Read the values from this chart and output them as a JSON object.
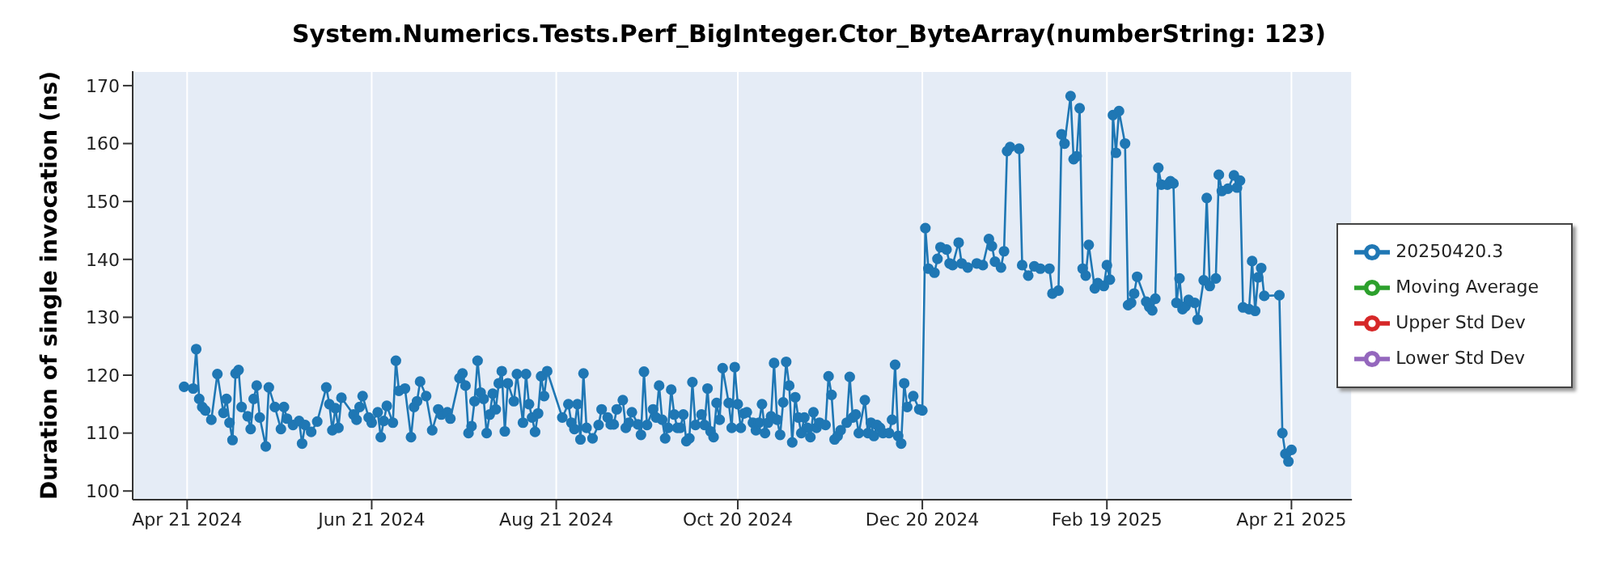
{
  "chart_data": {
    "type": "line",
    "title": "System.Numerics.Tests.Perf_BigInteger.Ctor_ByteArray(numberString: 123)",
    "ylabel": "Duration of single invocation (ns)",
    "x": [
      "2024-04-20",
      "2024-04-23",
      "2024-04-24",
      "2024-04-25",
      "2024-04-26",
      "2024-04-27",
      "2024-04-29",
      "2024-05-01",
      "2024-05-03",
      "2024-05-04",
      "2024-05-05",
      "2024-05-06",
      "2024-05-07",
      "2024-05-08",
      "2024-05-09",
      "2024-05-11",
      "2024-05-12",
      "2024-05-13",
      "2024-05-14",
      "2024-05-15",
      "2024-05-17",
      "2024-05-18",
      "2024-05-20",
      "2024-05-22",
      "2024-05-23",
      "2024-05-24",
      "2024-05-26",
      "2024-05-28",
      "2024-05-29",
      "2024-05-30",
      "2024-06-01",
      "2024-06-03",
      "2024-06-06",
      "2024-06-07",
      "2024-06-08",
      "2024-06-09",
      "2024-06-10",
      "2024-06-11",
      "2024-06-15",
      "2024-06-16",
      "2024-06-17",
      "2024-06-18",
      "2024-06-20",
      "2024-06-21",
      "2024-06-23",
      "2024-06-24",
      "2024-06-25",
      "2024-06-26",
      "2024-06-28",
      "2024-06-29",
      "2024-06-30",
      "2024-07-02",
      "2024-07-04",
      "2024-07-05",
      "2024-07-06",
      "2024-07-07",
      "2024-07-09",
      "2024-07-11",
      "2024-07-13",
      "2024-07-14",
      "2024-07-16",
      "2024-07-17",
      "2024-07-20",
      "2024-07-21",
      "2024-07-22",
      "2024-07-23",
      "2024-07-24",
      "2024-07-25",
      "2024-07-26",
      "2024-07-27",
      "2024-07-28",
      "2024-07-29",
      "2024-07-30",
      "2024-07-31",
      "2024-08-01",
      "2024-08-02",
      "2024-08-03",
      "2024-08-04",
      "2024-08-05",
      "2024-08-07",
      "2024-08-08",
      "2024-08-10",
      "2024-08-11",
      "2024-08-12",
      "2024-08-13",
      "2024-08-14",
      "2024-08-15",
      "2024-08-16",
      "2024-08-17",
      "2024-08-18",
      "2024-08-23",
      "2024-08-25",
      "2024-08-26",
      "2024-08-27",
      "2024-08-28",
      "2024-08-29",
      "2024-08-30",
      "2024-08-31",
      "2024-09-02",
      "2024-09-04",
      "2024-09-05",
      "2024-09-07",
      "2024-09-08",
      "2024-09-09",
      "2024-09-10",
      "2024-09-12",
      "2024-09-13",
      "2024-09-14",
      "2024-09-15",
      "2024-09-17",
      "2024-09-18",
      "2024-09-19",
      "2024-09-20",
      "2024-09-22",
      "2024-09-23",
      "2024-09-24",
      "2024-09-25",
      "2024-09-26",
      "2024-09-27",
      "2024-09-28",
      "2024-09-29",
      "2024-09-30",
      "2024-10-01",
      "2024-10-02",
      "2024-10-03",
      "2024-10-04",
      "2024-10-05",
      "2024-10-06",
      "2024-10-08",
      "2024-10-09",
      "2024-10-10",
      "2024-10-11",
      "2024-10-12",
      "2024-10-13",
      "2024-10-14",
      "2024-10-15",
      "2024-10-17",
      "2024-10-18",
      "2024-10-19",
      "2024-10-20",
      "2024-10-21",
      "2024-10-22",
      "2024-10-23",
      "2024-10-25",
      "2024-10-26",
      "2024-10-27",
      "2024-10-28",
      "2024-10-29",
      "2024-10-30",
      "2024-10-31",
      "2024-11-01",
      "2024-11-02",
      "2024-11-03",
      "2024-11-04",
      "2024-11-05",
      "2024-11-06",
      "2024-11-07",
      "2024-11-08",
      "2024-11-09",
      "2024-11-10",
      "2024-11-11",
      "2024-11-12",
      "2024-11-13",
      "2024-11-14",
      "2024-11-15",
      "2024-11-16",
      "2024-11-18",
      "2024-11-19",
      "2024-11-20",
      "2024-11-21",
      "2024-11-22",
      "2024-11-23",
      "2024-11-25",
      "2024-11-26",
      "2024-11-27",
      "2024-11-28",
      "2024-11-29",
      "2024-12-01",
      "2024-12-02",
      "2024-12-03",
      "2024-12-04",
      "2024-12-05",
      "2024-12-06",
      "2024-12-07",
      "2024-12-09",
      "2024-12-10",
      "2024-12-11",
      "2024-12-12",
      "2024-12-13",
      "2024-12-14",
      "2024-12-15",
      "2024-12-17",
      "2024-12-19",
      "2024-12-20",
      "2024-12-21",
      "2024-12-22",
      "2024-12-24",
      "2024-12-25",
      "2024-12-26",
      "2024-12-28",
      "2024-12-29",
      "2024-12-30",
      "2025-01-01",
      "2025-01-02",
      "2025-01-04",
      "2025-01-07",
      "2025-01-09",
      "2025-01-11",
      "2025-01-12",
      "2025-01-13",
      "2025-01-15",
      "2025-01-16",
      "2025-01-17",
      "2025-01-18",
      "2025-01-21",
      "2025-01-22",
      "2025-01-24",
      "2025-01-26",
      "2025-01-28",
      "2025-01-31",
      "2025-02-01",
      "2025-02-03",
      "2025-02-04",
      "2025-02-05",
      "2025-02-07",
      "2025-02-08",
      "2025-02-09",
      "2025-02-10",
      "2025-02-11",
      "2025-02-12",
      "2025-02-13",
      "2025-02-15",
      "2025-02-16",
      "2025-02-18",
      "2025-02-19",
      "2025-02-20",
      "2025-02-21",
      "2025-02-22",
      "2025-02-23",
      "2025-02-25",
      "2025-02-26",
      "2025-02-27",
      "2025-02-28",
      "2025-03-01",
      "2025-03-04",
      "2025-03-05",
      "2025-03-06",
      "2025-03-07",
      "2025-03-08",
      "2025-03-09",
      "2025-03-11",
      "2025-03-12",
      "2025-03-13",
      "2025-03-14",
      "2025-03-15",
      "2025-03-16",
      "2025-03-17",
      "2025-03-18",
      "2025-03-20",
      "2025-03-21",
      "2025-03-23",
      "2025-03-24",
      "2025-03-25",
      "2025-03-27",
      "2025-03-28",
      "2025-03-29",
      "2025-03-31",
      "2025-04-02",
      "2025-04-03",
      "2025-04-04",
      "2025-04-05",
      "2025-04-07",
      "2025-04-08",
      "2025-04-09",
      "2025-04-10",
      "2025-04-11",
      "2025-04-12",
      "2025-04-17",
      "2025-04-18",
      "2025-04-19",
      "2025-04-20",
      "2025-04-21"
    ],
    "series": [
      {
        "name": "20250420.3",
        "color": "#1f77b4",
        "values": [
          118.0,
          117.7,
          124.5,
          115.9,
          114.5,
          113.9,
          112.3,
          120.2,
          113.5,
          115.9,
          111.8,
          108.8,
          120.3,
          120.9,
          114.5,
          112.9,
          110.7,
          115.9,
          118.2,
          112.7,
          107.7,
          117.9,
          114.5,
          110.7,
          114.5,
          112.5,
          111.4,
          112.1,
          108.2,
          111.4,
          110.2,
          112.0,
          117.9,
          115.0,
          110.5,
          114.3,
          110.9,
          116.1,
          113.2,
          112.3,
          114.5,
          116.4,
          112.7,
          111.8,
          113.6,
          109.3,
          112.1,
          114.7,
          111.8,
          122.5,
          117.3,
          117.7,
          109.3,
          114.5,
          115.5,
          118.9,
          116.4,
          110.5,
          114.1,
          113.2,
          113.6,
          112.5,
          119.5,
          120.3,
          118.2,
          110.0,
          111.2,
          115.5,
          122.5,
          117.0,
          115.9,
          110.0,
          113.2,
          116.8,
          114.1,
          118.6,
          120.7,
          110.3,
          118.6,
          115.5,
          120.2,
          111.8,
          120.2,
          115.0,
          112.7,
          110.2,
          113.4,
          119.8,
          116.4,
          120.7,
          112.7,
          115.0,
          111.8,
          110.7,
          115.0,
          108.9,
          120.3,
          110.9,
          109.1,
          111.4,
          114.1,
          112.7,
          111.5,
          111.5,
          114.1,
          115.7,
          110.9,
          111.8,
          113.6,
          111.5,
          109.7,
          120.6,
          111.4,
          114.1,
          112.7,
          118.2,
          112.3,
          109.1,
          110.9,
          117.5,
          113.2,
          110.9,
          110.9,
          113.2,
          108.6,
          109.1,
          118.8,
          111.4,
          113.2,
          111.4,
          117.7,
          110.3,
          109.3,
          115.2,
          112.3,
          121.2,
          115.2,
          110.9,
          121.4,
          115.0,
          110.9,
          113.4,
          113.6,
          111.8,
          110.5,
          111.8,
          115.0,
          110.0,
          111.8,
          112.9,
          122.1,
          112.3,
          109.7,
          115.3,
          122.3,
          118.2,
          108.4,
          116.2,
          112.7,
          110.0,
          112.7,
          110.9,
          109.3,
          113.6,
          110.9,
          111.8,
          111.4,
          119.8,
          116.6,
          108.9,
          109.5,
          110.5,
          111.8,
          119.7,
          112.7,
          113.2,
          110.0,
          115.7,
          110.0,
          111.8,
          109.5,
          111.4,
          110.9,
          110.0,
          110.0,
          112.3,
          121.8,
          109.5,
          108.2,
          118.6,
          114.5,
          116.4,
          114.1,
          113.9,
          145.4,
          138.4,
          137.7,
          140.1,
          142.1,
          141.7,
          139.3,
          139.0,
          142.9,
          139.3,
          138.6,
          139.3,
          139.0,
          143.5,
          142.3,
          139.6,
          138.6,
          141.4,
          158.7,
          159.4,
          159.1,
          139.0,
          137.2,
          138.8,
          138.4,
          138.4,
          134.1,
          134.6,
          161.6,
          160.0,
          168.2,
          157.3,
          157.8,
          166.1,
          138.4,
          137.2,
          142.5,
          135.0,
          135.9,
          135.4,
          139.0,
          136.5,
          164.9,
          158.4,
          165.6,
          160.0,
          132.1,
          132.5,
          134.1,
          137.0,
          132.7,
          131.8,
          131.2,
          133.2,
          155.8,
          152.9,
          152.9,
          153.5,
          153.1,
          132.5,
          136.7,
          131.4,
          131.9,
          133.0,
          132.5,
          129.6,
          136.4,
          150.6,
          135.4,
          136.7,
          154.6,
          151.8,
          152.2,
          154.5,
          152.4,
          153.6,
          131.7,
          131.4,
          139.7,
          131.1,
          136.9,
          138.5,
          133.7,
          133.8,
          110.0,
          106.4,
          105.1,
          107.1
        ]
      },
      {
        "name": "Moving Average",
        "color": "#2ca02c",
        "values": [
          null,
          null,
          null,
          null,
          null,
          null,
          null,
          null,
          null,
          null,
          null,
          null,
          null,
          null,
          null,
          null,
          null,
          null,
          null,
          null,
          null,
          null,
          null,
          null,
          null,
          null,
          null,
          null,
          null,
          null,
          null,
          null,
          null,
          null,
          null,
          null,
          null,
          null,
          null,
          null,
          null,
          null,
          null,
          null,
          null,
          null,
          null,
          null,
          null,
          null,
          null,
          null,
          null,
          null,
          null,
          null,
          null,
          null,
          null,
          null,
          null,
          null,
          null,
          null,
          null,
          null,
          null,
          null,
          null,
          null,
          null,
          null,
          null,
          null,
          null,
          null,
          null,
          null,
          null,
          null,
          null,
          null,
          null,
          null,
          null,
          null,
          null,
          null,
          null,
          null,
          null,
          null,
          null,
          null,
          null,
          null,
          null,
          null,
          null,
          null,
          null,
          null,
          null,
          null,
          null,
          null,
          null,
          null,
          null,
          null,
          null,
          null,
          null,
          null,
          null,
          null,
          null,
          null,
          null,
          null,
          null,
          null,
          null,
          null,
          null,
          null,
          null,
          null,
          null,
          null,
          null,
          null,
          null,
          null,
          null,
          null,
          null,
          null,
          null,
          null,
          null,
          null,
          null,
          null,
          null,
          null,
          null,
          null,
          null,
          null,
          null,
          null,
          null,
          null,
          null,
          null,
          null,
          null,
          null,
          null,
          null,
          null,
          null,
          null,
          null,
          null,
          null,
          null,
          null,
          null,
          null,
          null,
          null,
          null,
          null,
          null,
          null,
          null,
          null,
          null,
          null,
          null,
          null,
          null,
          null,
          null,
          null,
          null,
          null,
          null,
          null,
          null,
          null,
          null,
          null,
          null,
          null,
          null,
          null,
          null,
          null,
          null,
          null,
          null,
          null,
          null,
          null,
          null,
          null,
          null,
          null,
          null,
          null,
          null,
          null,
          null,
          null,
          null,
          null,
          null,
          null,
          null,
          null,
          null,
          null,
          null,
          null,
          null,
          null,
          null,
          null,
          null,
          null,
          null,
          null,
          null,
          null,
          null,
          null,
          null,
          null,
          null,
          null,
          null,
          null,
          null,
          null,
          null,
          null,
          null,
          null,
          null,
          null,
          null,
          null,
          null,
          null,
          null,
          null,
          null,
          null,
          null,
          null,
          null,
          null,
          null,
          null,
          null,
          null,
          null,
          null,
          null,
          null,
          null,
          null,
          null,
          null,
          null,
          null,
          null,
          null,
          null
        ]
      },
      {
        "name": "Upper Std Dev",
        "color": "#d62728",
        "values": [
          null,
          null,
          null,
          null,
          null,
          null,
          null,
          null,
          null,
          null,
          null,
          null,
          null,
          null,
          null,
          null,
          null,
          null,
          null,
          null,
          null,
          null,
          null,
          null,
          null,
          null,
          null,
          null,
          null,
          null,
          null,
          null,
          null,
          null,
          null,
          null,
          null,
          null,
          null,
          null,
          null,
          null,
          null,
          null,
          null,
          null,
          null,
          null,
          null,
          null,
          null,
          null,
          null,
          null,
          null,
          null,
          null,
          null,
          null,
          null,
          null,
          null,
          null,
          null,
          null,
          null,
          null,
          null,
          null,
          null,
          null,
          null,
          null,
          null,
          null,
          null,
          null,
          null,
          null,
          null,
          null,
          null,
          null,
          null,
          null,
          null,
          null,
          null,
          null,
          null,
          null,
          null,
          null,
          null,
          null,
          null,
          null,
          null,
          null,
          null,
          null,
          null,
          null,
          null,
          null,
          null,
          null,
          null,
          null,
          null,
          null,
          null,
          null,
          null,
          null,
          null,
          null,
          null,
          null,
          null,
          null,
          null,
          null,
          null,
          null,
          null,
          null,
          null,
          null,
          null,
          null,
          null,
          null,
          null,
          null,
          null,
          null,
          null,
          null,
          null,
          null,
          null,
          null,
          null,
          null,
          null,
          null,
          null,
          null,
          null,
          null,
          null,
          null,
          null,
          null,
          null,
          null,
          null,
          null,
          null,
          null,
          null,
          null,
          null,
          null,
          null,
          null,
          null,
          null,
          null,
          null,
          null,
          null,
          null,
          null,
          null,
          null,
          null,
          null,
          null,
          null,
          null,
          null,
          null,
          null,
          null,
          null,
          null,
          null,
          null,
          null,
          null,
          null,
          null,
          null,
          null,
          null,
          null,
          null,
          null,
          null,
          null,
          null,
          null,
          null,
          null,
          null,
          null,
          null,
          null,
          null,
          null,
          null,
          null,
          null,
          null,
          null,
          null,
          null,
          null,
          null,
          null,
          null,
          null,
          null,
          null,
          null,
          null,
          null,
          null,
          null,
          null,
          null,
          null,
          null,
          null,
          null,
          null,
          null,
          null,
          null,
          null,
          null,
          null,
          null,
          null,
          null,
          null,
          null,
          null,
          null,
          null,
          null,
          null,
          null,
          null,
          null,
          null,
          null,
          null,
          null,
          null,
          null,
          null,
          null,
          null,
          null,
          null,
          null,
          null,
          null,
          null,
          null,
          null,
          null,
          null,
          null,
          null,
          null,
          null,
          null,
          null
        ]
      },
      {
        "name": "Lower Std Dev",
        "color": "#9467bd",
        "values": [
          null,
          null,
          null,
          null,
          null,
          null,
          null,
          null,
          null,
          null,
          null,
          null,
          null,
          null,
          null,
          null,
          null,
          null,
          null,
          null,
          null,
          null,
          null,
          null,
          null,
          null,
          null,
          null,
          null,
          null,
          null,
          null,
          null,
          null,
          null,
          null,
          null,
          null,
          null,
          null,
          null,
          null,
          null,
          null,
          null,
          null,
          null,
          null,
          null,
          null,
          null,
          null,
          null,
          null,
          null,
          null,
          null,
          null,
          null,
          null,
          null,
          null,
          null,
          null,
          null,
          null,
          null,
          null,
          null,
          null,
          null,
          null,
          null,
          null,
          null,
          null,
          null,
          null,
          null,
          null,
          null,
          null,
          null,
          null,
          null,
          null,
          null,
          null,
          null,
          null,
          null,
          null,
          null,
          null,
          null,
          null,
          null,
          null,
          null,
          null,
          null,
          null,
          null,
          null,
          null,
          null,
          null,
          null,
          null,
          null,
          null,
          null,
          null,
          null,
          null,
          null,
          null,
          null,
          null,
          null,
          null,
          null,
          null,
          null,
          null,
          null,
          null,
          null,
          null,
          null,
          null,
          null,
          null,
          null,
          null,
          null,
          null,
          null,
          null,
          null,
          null,
          null,
          null,
          null,
          null,
          null,
          null,
          null,
          null,
          null,
          null,
          null,
          null,
          null,
          null,
          null,
          null,
          null,
          null,
          null,
          null,
          null,
          null,
          null,
          null,
          null,
          null,
          null,
          null,
          null,
          null,
          null,
          null,
          null,
          null,
          null,
          null,
          null,
          null,
          null,
          null,
          null,
          null,
          null,
          null,
          null,
          null,
          null,
          null,
          null,
          null,
          null,
          null,
          null,
          null,
          null,
          null,
          null,
          null,
          null,
          null,
          null,
          null,
          null,
          null,
          null,
          null,
          null,
          null,
          null,
          null,
          null,
          null,
          null,
          null,
          null,
          null,
          null,
          null,
          null,
          null,
          null,
          null,
          null,
          null,
          null,
          null,
          null,
          null,
          null,
          null,
          null,
          null,
          null,
          null,
          null,
          null,
          null,
          null,
          null,
          null,
          null,
          null,
          null,
          null,
          null,
          null,
          null,
          null,
          null,
          null,
          null,
          null,
          null,
          null,
          null,
          null,
          null,
          null,
          null,
          null,
          null,
          null,
          null,
          null,
          null,
          null,
          null,
          null,
          null,
          null,
          null,
          null,
          null,
          null,
          null,
          null,
          null,
          null,
          null,
          null,
          null
        ]
      }
    ],
    "xlim": [
      "2024-04-03",
      "2025-05-11"
    ],
    "xticks": [
      {
        "value": "2024-04-21",
        "label": "Apr 21 2024"
      },
      {
        "value": "2024-06-21",
        "label": "Jun 21 2024"
      },
      {
        "value": "2024-08-21",
        "label": "Aug 21 2024"
      },
      {
        "value": "2024-10-20",
        "label": "Oct 20 2024"
      },
      {
        "value": "2024-12-20",
        "label": "Dec 20 2024"
      },
      {
        "value": "2025-02-19",
        "label": "Feb 19 2025"
      },
      {
        "value": "2025-04-21",
        "label": "Apr 21 2025"
      }
    ],
    "ylim": [
      98.5,
      172.5
    ],
    "yticks": [
      100,
      110,
      120,
      130,
      140,
      150,
      160,
      170
    ],
    "grid": true,
    "legend": "right",
    "marker": "circle",
    "line_style": "solid"
  }
}
